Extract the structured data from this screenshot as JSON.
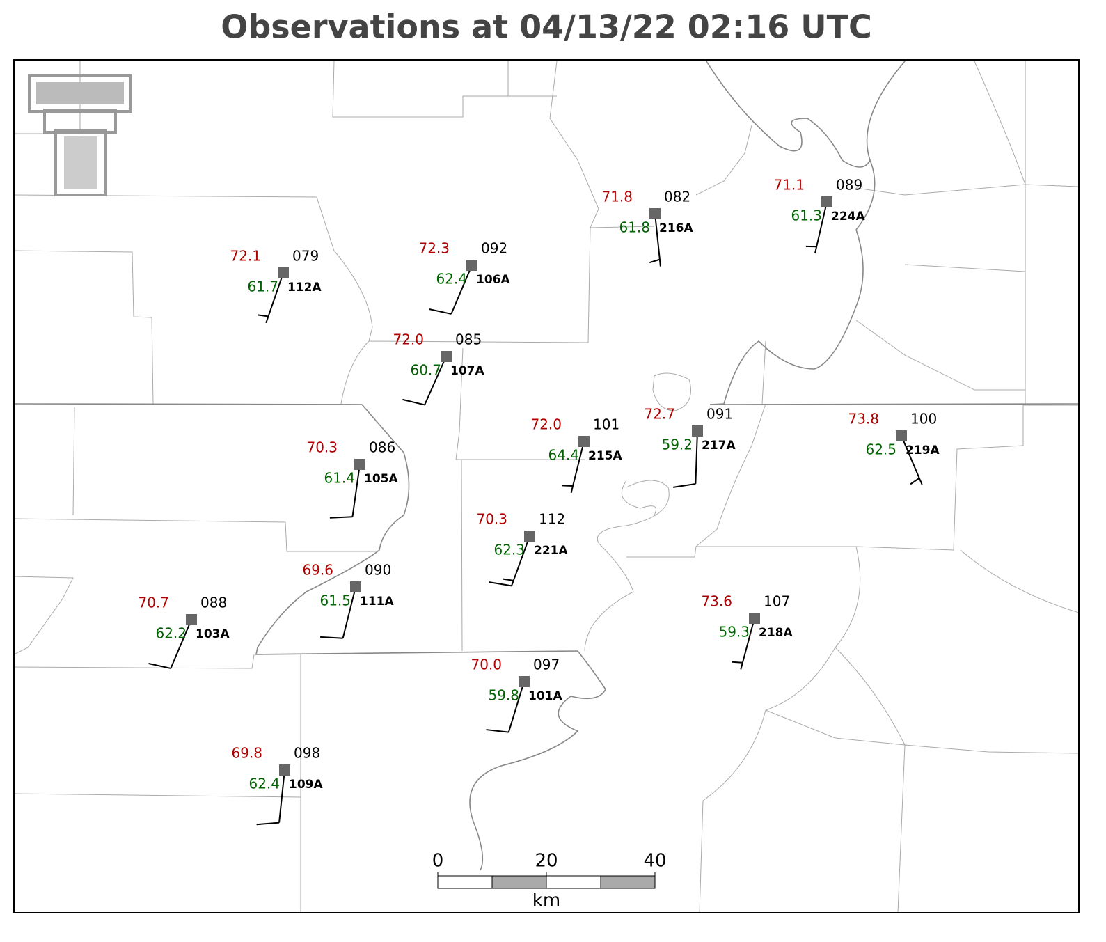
{
  "title": "Observations at 04/13/22 02:16 UTC",
  "stations": [
    {
      "id": "112A",
      "temperature": "72.1",
      "dewpoint": "61.7",
      "pressure": "079",
      "wind_direction": 199,
      "wind_speed": 5
    },
    {
      "id": "106A",
      "temperature": "72.3",
      "dewpoint": "62.4",
      "pressure": "092",
      "wind_direction": 203,
      "wind_speed": 10
    },
    {
      "id": "107A",
      "temperature": "72.0",
      "dewpoint": "60.7",
      "pressure": "085",
      "wind_direction": 204,
      "wind_speed": 10
    },
    {
      "id": "216A",
      "temperature": "71.8",
      "dewpoint": "61.8",
      "pressure": "082",
      "wind_direction": 174,
      "wind_speed": 5
    },
    {
      "id": "224A",
      "temperature": "71.1",
      "dewpoint": "61.3",
      "pressure": "089",
      "wind_direction": 193,
      "wind_speed": 5
    },
    {
      "id": "105A",
      "temperature": "70.3",
      "dewpoint": "61.4",
      "pressure": "086",
      "wind_direction": 188,
      "wind_speed": 10
    },
    {
      "id": "215A",
      "temperature": "72.0",
      "dewpoint": "64.4",
      "pressure": "101",
      "wind_direction": 194,
      "wind_speed": 5
    },
    {
      "id": "217A",
      "temperature": "72.7",
      "dewpoint": "59.2",
      "pressure": "091",
      "wind_direction": 182,
      "wind_speed": 10
    },
    {
      "id": "219A",
      "temperature": "73.8",
      "dewpoint": "62.5",
      "pressure": "100",
      "wind_direction": 157,
      "wind_speed": 5
    },
    {
      "id": "221A",
      "temperature": "70.3",
      "dewpoint": "62.3",
      "pressure": "112",
      "wind_direction": 200,
      "wind_speed": 15
    },
    {
      "id": "111A",
      "temperature": "69.6",
      "dewpoint": "61.5",
      "pressure": "090",
      "wind_direction": 194,
      "wind_speed": 10
    },
    {
      "id": "103A",
      "temperature": "70.7",
      "dewpoint": "62.2",
      "pressure": "088",
      "wind_direction": 203,
      "wind_speed": 10
    },
    {
      "id": "218A",
      "temperature": "73.6",
      "dewpoint": "59.3",
      "pressure": "107",
      "wind_direction": 195,
      "wind_speed": 5
    },
    {
      "id": "101A",
      "temperature": "70.0",
      "dewpoint": "59.8",
      "pressure": "097",
      "wind_direction": 197,
      "wind_speed": 10
    },
    {
      "id": "109A",
      "temperature": "69.8",
      "dewpoint": "62.4",
      "pressure": "098",
      "wind_direction": 186,
      "wind_speed": 10
    }
  ],
  "scale_bar": {
    "ticks": [
      0,
      20,
      40
    ],
    "unit": "km"
  }
}
